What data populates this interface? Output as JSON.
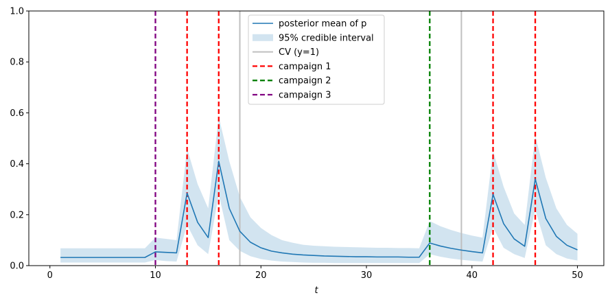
{
  "chart_data": {
    "type": "line",
    "title": "",
    "xlabel": "t",
    "ylabel": "",
    "xlim": [
      -2,
      52.5
    ],
    "ylim": [
      0,
      1.0
    ],
    "xticks": [
      0,
      10,
      20,
      30,
      40,
      50
    ],
    "yticks": [
      0.0,
      0.2,
      0.4,
      0.6,
      0.8,
      1.0
    ],
    "x": [
      1,
      2,
      3,
      4,
      5,
      6,
      7,
      8,
      9,
      10,
      11,
      12,
      13,
      14,
      15,
      16,
      17,
      18,
      19,
      20,
      21,
      22,
      23,
      24,
      25,
      26,
      27,
      28,
      29,
      30,
      31,
      32,
      33,
      34,
      35,
      36,
      37,
      38,
      39,
      40,
      41,
      42,
      43,
      44,
      45,
      46,
      47,
      48,
      49,
      50
    ],
    "series": [
      {
        "name": "posterior mean of p",
        "color": "#1f77b4",
        "values": [
          0.032,
          0.032,
          0.032,
          0.032,
          0.032,
          0.032,
          0.032,
          0.032,
          0.032,
          0.054,
          0.052,
          0.05,
          0.285,
          0.17,
          0.11,
          0.41,
          0.225,
          0.135,
          0.092,
          0.07,
          0.057,
          0.05,
          0.045,
          0.042,
          0.04,
          0.038,
          0.037,
          0.036,
          0.035,
          0.035,
          0.034,
          0.034,
          0.034,
          0.033,
          0.033,
          0.089,
          0.077,
          0.068,
          0.061,
          0.055,
          0.05,
          0.28,
          0.165,
          0.105,
          0.076,
          0.34,
          0.185,
          0.115,
          0.08,
          0.062
        ]
      }
    ],
    "band": {
      "name": "95% credible interval",
      "color": "#1f77b4",
      "lower": [
        0.012,
        0.012,
        0.012,
        0.012,
        0.012,
        0.012,
        0.012,
        0.012,
        0.012,
        0.022,
        0.018,
        0.016,
        0.16,
        0.08,
        0.045,
        0.28,
        0.1,
        0.058,
        0.037,
        0.026,
        0.02,
        0.016,
        0.014,
        0.012,
        0.011,
        0.011,
        0.01,
        0.01,
        0.01,
        0.01,
        0.01,
        0.01,
        0.01,
        0.01,
        0.01,
        0.045,
        0.035,
        0.028,
        0.023,
        0.019,
        0.016,
        0.15,
        0.07,
        0.045,
        0.03,
        0.22,
        0.08,
        0.045,
        0.028,
        0.02
      ],
      "upper": [
        0.068,
        0.068,
        0.068,
        0.068,
        0.068,
        0.068,
        0.068,
        0.068,
        0.068,
        0.11,
        0.105,
        0.1,
        0.46,
        0.32,
        0.225,
        0.585,
        0.41,
        0.27,
        0.19,
        0.148,
        0.12,
        0.1,
        0.09,
        0.082,
        0.078,
        0.076,
        0.074,
        0.073,
        0.072,
        0.071,
        0.07,
        0.07,
        0.069,
        0.069,
        0.068,
        0.175,
        0.155,
        0.14,
        0.128,
        0.118,
        0.11,
        0.45,
        0.31,
        0.205,
        0.16,
        0.51,
        0.345,
        0.225,
        0.16,
        0.125
      ]
    },
    "vlines": [
      {
        "x": 18,
        "label": "CV (y=1)",
        "color": "#bfbfbf",
        "style": "solid"
      },
      {
        "x": 39,
        "label": "CV (y=1)",
        "color": "#bfbfbf",
        "style": "solid"
      },
      {
        "x": 13,
        "label": "campaign 1",
        "color": "#ff0000",
        "style": "dashed"
      },
      {
        "x": 16,
        "label": "campaign 1",
        "color": "#ff0000",
        "style": "dashed"
      },
      {
        "x": 42,
        "label": "campaign 1",
        "color": "#ff0000",
        "style": "dashed"
      },
      {
        "x": 46,
        "label": "campaign 1",
        "color": "#ff0000",
        "style": "dashed"
      },
      {
        "x": 36,
        "label": "campaign 2",
        "color": "#008000",
        "style": "dashed"
      },
      {
        "x": 10,
        "label": "campaign 3",
        "color": "#800080",
        "style": "dashed"
      }
    ],
    "legend": {
      "position": "top-center",
      "entries": [
        {
          "label": "posterior mean of p",
          "kind": "line",
          "color": "#1f77b4",
          "style": "solid"
        },
        {
          "label": "95% credible interval",
          "kind": "patch",
          "color": "#1f77b4"
        },
        {
          "label": "CV (y=1)",
          "kind": "line",
          "color": "#bfbfbf",
          "style": "solid"
        },
        {
          "label": "campaign 1",
          "kind": "line",
          "color": "#ff0000",
          "style": "dashed"
        },
        {
          "label": "campaign 2",
          "kind": "line",
          "color": "#008000",
          "style": "dashed"
        },
        {
          "label": "campaign 3",
          "kind": "line",
          "color": "#800080",
          "style": "dashed"
        }
      ]
    }
  }
}
